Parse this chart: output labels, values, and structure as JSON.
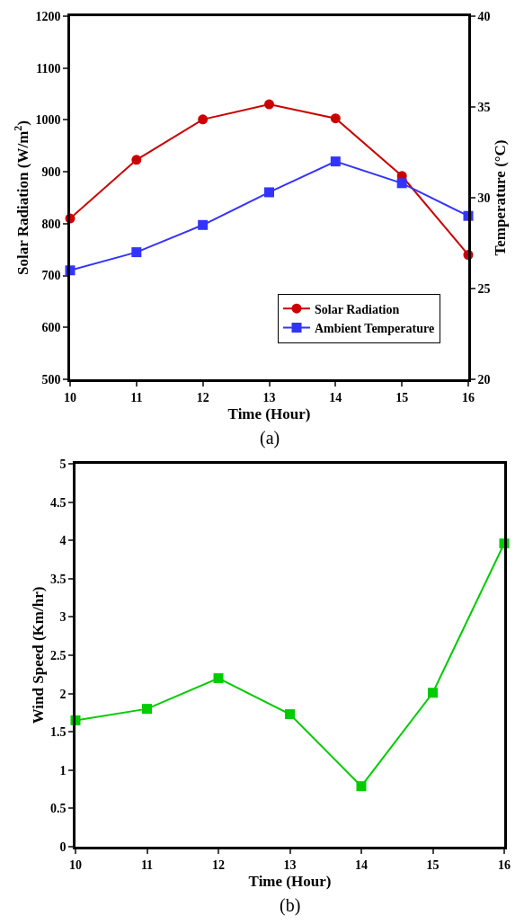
{
  "chart_data": [
    {
      "type": "line",
      "xlabel": "Time (Hour)",
      "ylabel": "Solar Radiation (W/m$^{2}$)",
      "y2label": "Temperature (°C)",
      "x": [
        10,
        11,
        12,
        13,
        14,
        15,
        16
      ],
      "series": [
        {
          "name": "Solar Radiation",
          "color": "#cc0000",
          "marker": "circle",
          "values": [
            810,
            923,
            1001,
            1030,
            1003,
            892,
            740
          ]
        },
        {
          "name": "Ambient Temperature",
          "color": "#3333ff",
          "marker": "square",
          "axis": "y2",
          "values": [
            26.0,
            27.0,
            28.5,
            30.3,
            32.0,
            30.8,
            29.0
          ]
        }
      ],
      "xlim": [
        10,
        16
      ],
      "xticks": [
        10,
        11,
        12,
        13,
        14,
        15,
        16
      ],
      "ylim": [
        500,
        1200
      ],
      "yticks": [
        500,
        600,
        700,
        800,
        900,
        1000,
        1100,
        1200
      ],
      "y2lim": [
        20,
        40
      ],
      "y2ticks": [
        20,
        25,
        30,
        35,
        40
      ],
      "grid": false,
      "legend": "bottom right",
      "line_style": "solid",
      "annotations": [
        "(a)"
      ]
    },
    {
      "type": "line",
      "xlabel": "Time (Hour)",
      "ylabel": "Wind Speed (Km/hr)",
      "x": [
        10,
        11,
        12,
        13,
        14,
        15,
        16
      ],
      "series": [
        {
          "color": "#00cc00",
          "marker": "square",
          "values": [
            1.65,
            1.8,
            2.2,
            1.73,
            0.79,
            2.01,
            3.96
          ]
        }
      ],
      "xlim": [
        10,
        16
      ],
      "xticks": [
        10,
        11,
        12,
        13,
        14,
        15,
        16
      ],
      "ylim": [
        0,
        5
      ],
      "yticks": [
        0,
        0.5,
        1,
        1.5,
        2,
        2.5,
        3,
        3.5,
        4,
        4.5,
        5
      ],
      "grid": false,
      "legend": false,
      "line_style": "solid",
      "annotations": [
        "(b)"
      ]
    }
  ]
}
